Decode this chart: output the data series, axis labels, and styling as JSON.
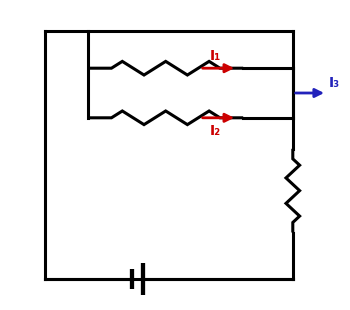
{
  "bg_color": "#ffffff",
  "line_color": "#000000",
  "line_width": 2.2,
  "resistor_color": "#000000",
  "arrow_color_red": "#cc0000",
  "arrow_color_blue": "#2222bb",
  "I1_label": "I₁",
  "I2_label": "I₂",
  "I3_label": "I₃",
  "label_fontsize": 10,
  "figsize": [
    3.5,
    3.1
  ],
  "dpi": 100,
  "xlim": [
    0,
    10
  ],
  "ylim": [
    0,
    10
  ]
}
